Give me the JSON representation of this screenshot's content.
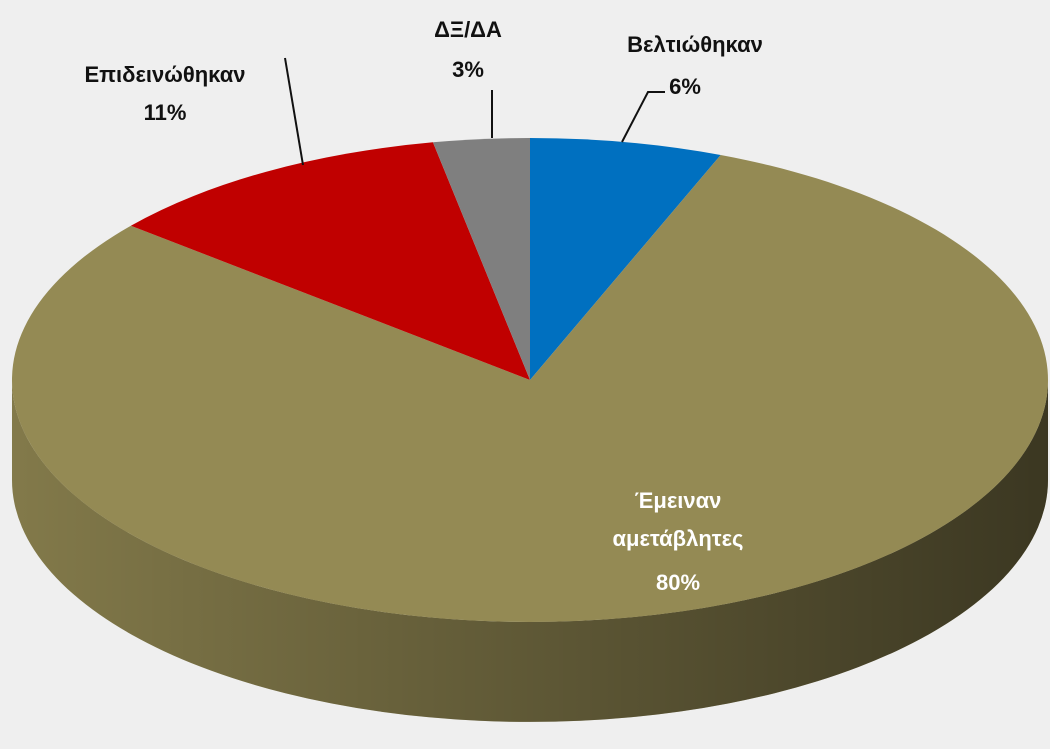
{
  "chart_data": {
    "type": "pie",
    "categories": [
      "Βελτιώθηκαν",
      "Έμειναν αμετάβλητες",
      "Επιδεινώθηκαν",
      "ΔΞ/ΔΑ"
    ],
    "values": [
      6,
      80,
      11,
      3
    ],
    "value_labels": [
      "6%",
      "80%",
      "11%",
      "3%"
    ],
    "colors": [
      "#0070c0",
      "#948a54",
      "#c00000",
      "#7f7f7f"
    ]
  }
}
